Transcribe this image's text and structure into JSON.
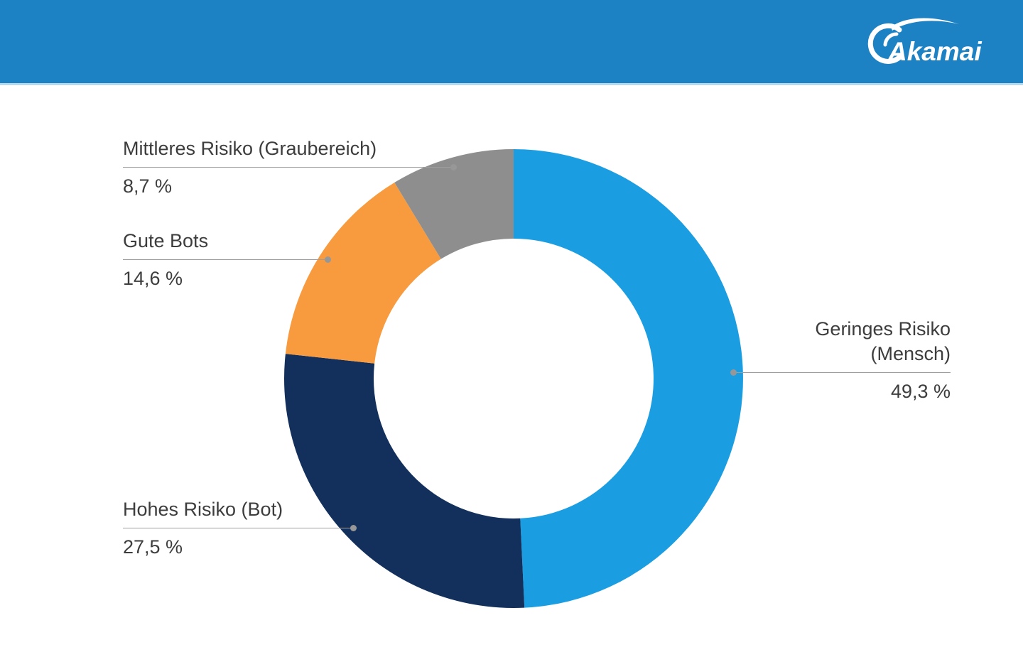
{
  "header": {
    "brand": "Akamai",
    "banner_color": "#1d82c4"
  },
  "chart_data": {
    "type": "pie",
    "subtype": "donut",
    "title": "",
    "direction": "clockwise",
    "start_angle_deg": 0,
    "inner_radius_ratio": 0.61,
    "legend_position": "callouts",
    "segments": [
      {
        "label": "Geringes Risiko (Mensch)",
        "value": 49.3,
        "display_value": "49,3 %",
        "color": "#1b9de2"
      },
      {
        "label": "Hohes Risiko (Bot)",
        "value": 27.5,
        "display_value": "27,5 %",
        "color": "#12305b"
      },
      {
        "label": "Gute Bots",
        "value": 14.6,
        "display_value": "14,6 %",
        "color": "#f89b3e"
      },
      {
        "label": "Mittleres Risiko (Graubereich)",
        "value": 8.7,
        "display_value": "8,7 %",
        "color": "#8e8e8e"
      }
    ]
  },
  "callouts": {
    "mittleres": {
      "title": "Mittleres Risiko (Graubereich)",
      "value": "8,7 %"
    },
    "gute": {
      "title": "Gute Bots",
      "value": "14,6 %"
    },
    "geringes": {
      "line1": "Geringes Risiko",
      "line2": "(Mensch)",
      "value": "49,3 %"
    },
    "hohes": {
      "title": "Hohes Risiko (Bot)",
      "value": "27,5 %"
    }
  }
}
